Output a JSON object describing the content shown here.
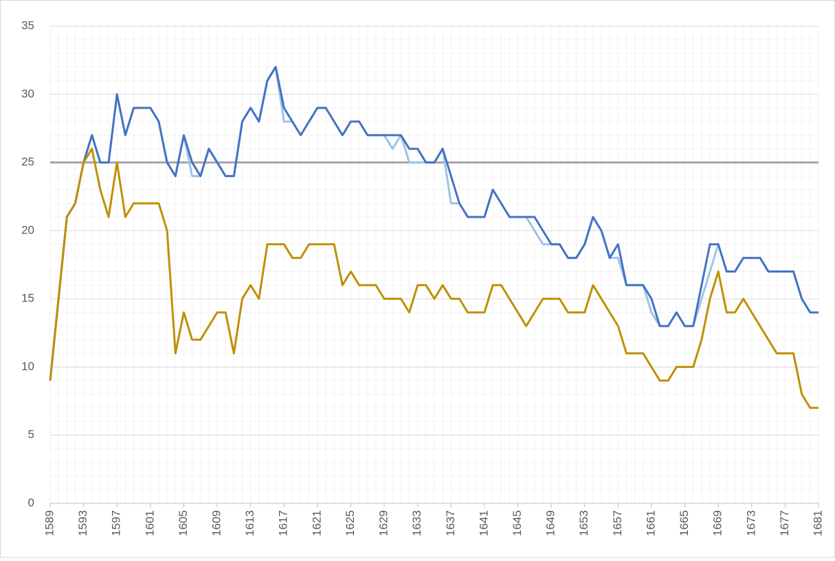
{
  "chart_data": {
    "type": "line",
    "x": [
      1589,
      1590,
      1591,
      1592,
      1593,
      1594,
      1595,
      1596,
      1597,
      1598,
      1599,
      1600,
      1601,
      1602,
      1603,
      1604,
      1605,
      1606,
      1607,
      1608,
      1609,
      1610,
      1611,
      1612,
      1613,
      1614,
      1615,
      1616,
      1617,
      1618,
      1619,
      1620,
      1621,
      1622,
      1623,
      1624,
      1625,
      1626,
      1627,
      1628,
      1629,
      1630,
      1631,
      1632,
      1633,
      1634,
      1635,
      1636,
      1637,
      1638,
      1639,
      1640,
      1641,
      1642,
      1643,
      1644,
      1645,
      1646,
      1647,
      1648,
      1649,
      1650,
      1651,
      1652,
      1653,
      1654,
      1655,
      1656,
      1657,
      1658,
      1659,
      1660,
      1661,
      1662,
      1663,
      1664,
      1665,
      1666,
      1667,
      1668,
      1669,
      1670,
      1671,
      1672,
      1673,
      1674,
      1675,
      1676,
      1677,
      1678,
      1679,
      1680,
      1681
    ],
    "series": [
      {
        "color": "#a5a5a5",
        "values": [
          25,
          25,
          25,
          25,
          25,
          25,
          25,
          25,
          25,
          25,
          25,
          25,
          25,
          25,
          25,
          25,
          25,
          25,
          25,
          25,
          25,
          25,
          25,
          25,
          25,
          25,
          25,
          25,
          25,
          25,
          25,
          25,
          25,
          25,
          25,
          25,
          25,
          25,
          25,
          25,
          25,
          25,
          25,
          25,
          25,
          25,
          25,
          25,
          25,
          25,
          25,
          25,
          25,
          25,
          25,
          25,
          25,
          25,
          25,
          25,
          25,
          25,
          25,
          25,
          25,
          25,
          25,
          25,
          25,
          25,
          25,
          25,
          25,
          25,
          25,
          25,
          25,
          25,
          25,
          25,
          25,
          25,
          25,
          25,
          25,
          25,
          25,
          25,
          25,
          25,
          25,
          25,
          25
        ]
      },
      {
        "color": "#9dc3e6",
        "values": [
          9,
          15,
          21,
          22,
          25,
          27,
          25,
          25,
          30,
          27,
          29,
          29,
          29,
          28,
          25,
          24,
          27,
          24,
          24,
          26,
          25,
          24,
          24,
          28,
          29,
          28,
          31,
          32,
          28,
          28,
          27,
          28,
          29,
          29,
          28,
          27,
          28,
          28,
          27,
          27,
          27,
          26,
          27,
          25,
          25,
          25,
          25,
          26,
          22,
          22,
          21,
          21,
          21,
          23,
          22,
          21,
          21,
          21,
          20,
          19,
          19,
          19,
          18,
          18,
          19,
          21,
          20,
          18,
          18,
          16,
          16,
          16,
          14,
          13,
          13,
          14,
          13,
          13,
          15,
          17,
          19,
          17,
          17,
          18,
          18,
          18,
          17,
          17,
          17,
          17,
          15,
          14,
          14
        ]
      },
      {
        "color": "#4472c4",
        "values": [
          9,
          15,
          21,
          22,
          25,
          27,
          25,
          25,
          30,
          27,
          29,
          29,
          29,
          28,
          25,
          24,
          27,
          25,
          24,
          26,
          25,
          24,
          24,
          28,
          29,
          28,
          31,
          32,
          29,
          28,
          27,
          28,
          29,
          29,
          28,
          27,
          28,
          28,
          27,
          27,
          27,
          27,
          27,
          26,
          26,
          25,
          25,
          26,
          24,
          22,
          21,
          21,
          21,
          23,
          22,
          21,
          21,
          21,
          21,
          20,
          19,
          19,
          18,
          18,
          19,
          21,
          20,
          18,
          19,
          16,
          16,
          16,
          15,
          13,
          13,
          14,
          13,
          13,
          16,
          19,
          19,
          17,
          17,
          18,
          18,
          18,
          17,
          17,
          17,
          17,
          15,
          14,
          14
        ]
      },
      {
        "color": "#bf9000",
        "values": [
          9,
          15,
          21,
          22,
          25,
          26,
          23,
          21,
          25,
          21,
          22,
          22,
          22,
          22,
          20,
          11,
          14,
          12,
          12,
          13,
          14,
          14,
          11,
          15,
          16,
          15,
          19,
          19,
          19,
          18,
          18,
          19,
          19,
          19,
          19,
          16,
          17,
          16,
          16,
          16,
          15,
          15,
          15,
          14,
          16,
          16,
          15,
          16,
          15,
          15,
          14,
          14,
          14,
          16,
          16,
          15,
          14,
          13,
          14,
          15,
          15,
          15,
          14,
          14,
          14,
          16,
          15,
          14,
          13,
          11,
          11,
          11,
          10,
          9,
          9,
          10,
          10,
          10,
          12,
          15,
          17,
          14,
          14,
          15,
          14,
          13,
          12,
          11,
          11,
          11,
          8,
          7,
          7
        ]
      }
    ],
    "xlim": [
      1589,
      1681
    ],
    "xticks": [
      1589,
      1593,
      1597,
      1601,
      1605,
      1609,
      1613,
      1617,
      1621,
      1625,
      1629,
      1633,
      1637,
      1641,
      1645,
      1649,
      1653,
      1657,
      1661,
      1665,
      1669,
      1673,
      1677,
      1681
    ],
    "ylim": [
      0,
      35
    ],
    "yticks": [
      0,
      5,
      10,
      15,
      20,
      25,
      30,
      35
    ],
    "grid": true,
    "minor_grid": true
  }
}
